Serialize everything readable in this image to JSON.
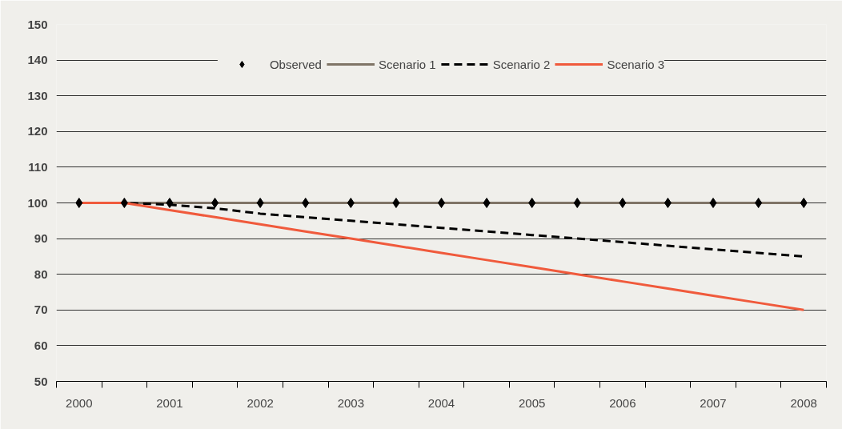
{
  "chart_data": {
    "type": "line",
    "categories": [
      "2000",
      null,
      "2001",
      null,
      "2002",
      null,
      "2003",
      null,
      "2004",
      null,
      "2005",
      null,
      "2006",
      null,
      "2007",
      null,
      "2008"
    ],
    "series": [
      {
        "name": "Observed",
        "type": "scatter",
        "marker": "diamond",
        "color": "#000000",
        "values": [
          100,
          100,
          100,
          100,
          100,
          100,
          100,
          100,
          100,
          100,
          100,
          100,
          100,
          100,
          100,
          100,
          100
        ]
      },
      {
        "name": "Scenario 1",
        "color": "#7f7466",
        "line_style": "solid",
        "values": [
          100,
          100,
          100,
          100,
          100,
          100,
          100,
          100,
          100,
          100,
          100,
          100,
          100,
          100,
          100,
          100,
          100
        ]
      },
      {
        "name": "Scenario 2",
        "color": "#000000",
        "line_style": "dashed",
        "values": [
          100,
          100,
          99.5,
          98.5,
          97,
          96,
          95,
          94,
          93,
          92,
          91,
          90,
          89,
          88,
          87,
          86,
          85
        ]
      },
      {
        "name": "Scenario 3",
        "color": "#f05a3c",
        "line_style": "solid",
        "values": [
          100,
          100,
          98,
          96,
          94,
          92,
          90,
          88,
          86,
          84,
          82,
          80,
          78,
          76,
          74,
          72,
          70
        ]
      }
    ],
    "ylim": [
      50,
      150
    ],
    "yticks": [
      50,
      60,
      70,
      80,
      90,
      100,
      110,
      120,
      130,
      140,
      150
    ],
    "grid": "y",
    "legend": "top"
  }
}
